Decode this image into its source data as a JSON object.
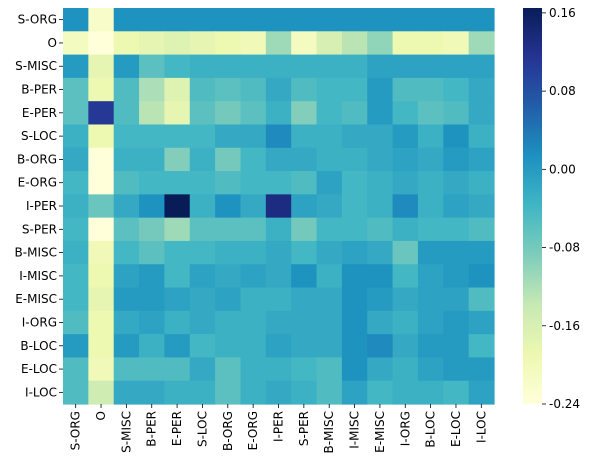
{
  "chart_data": {
    "type": "heatmap",
    "title": "",
    "xlabel": "",
    "ylabel": "",
    "row_labels": [
      "S-ORG",
      "O",
      "S-MISC",
      "B-PER",
      "E-PER",
      "S-LOC",
      "B-ORG",
      "E-ORG",
      "I-PER",
      "S-PER",
      "B-MISC",
      "I-MISC",
      "E-MISC",
      "I-ORG",
      "B-LOC",
      "E-LOC",
      "I-LOC"
    ],
    "col_labels": [
      "S-ORG",
      "O",
      "S-MISC",
      "B-PER",
      "E-PER",
      "S-LOC",
      "B-ORG",
      "E-ORG",
      "I-PER",
      "S-PER",
      "B-MISC",
      "I-MISC",
      "E-MISC",
      "I-ORG",
      "B-LOC",
      "E-LOC",
      "I-LOC"
    ],
    "values": [
      [
        0.01,
        -0.22,
        0.01,
        0.01,
        0.01,
        0.01,
        0.01,
        0.01,
        0.01,
        0.01,
        0.01,
        0.01,
        0.01,
        0.01,
        0.01,
        0.01,
        0.01
      ],
      [
        -0.21,
        -0.24,
        -0.19,
        -0.18,
        -0.17,
        -0.18,
        -0.19,
        -0.2,
        -0.11,
        -0.21,
        -0.16,
        -0.13,
        -0.1,
        -0.19,
        -0.19,
        -0.2,
        -0.11
      ],
      [
        0.0,
        -0.18,
        0.0,
        -0.06,
        -0.04,
        -0.03,
        -0.03,
        -0.03,
        -0.03,
        -0.03,
        -0.03,
        -0.03,
        -0.01,
        -0.01,
        -0.01,
        -0.01,
        -0.01
      ],
      [
        -0.06,
        -0.19,
        -0.05,
        -0.12,
        -0.17,
        -0.05,
        -0.06,
        -0.05,
        -0.02,
        -0.05,
        -0.04,
        -0.04,
        0.0,
        -0.05,
        -0.05,
        -0.04,
        -0.02
      ],
      [
        -0.06,
        0.11,
        -0.05,
        -0.13,
        -0.18,
        -0.06,
        -0.08,
        -0.06,
        -0.03,
        -0.09,
        -0.04,
        -0.05,
        0.0,
        -0.04,
        -0.06,
        -0.05,
        -0.02
      ],
      [
        -0.03,
        -0.19,
        -0.04,
        -0.04,
        -0.04,
        -0.04,
        -0.02,
        -0.02,
        0.02,
        -0.03,
        -0.03,
        -0.02,
        -0.02,
        0.0,
        -0.03,
        0.01,
        -0.03
      ],
      [
        -0.02,
        -0.24,
        -0.03,
        -0.03,
        -0.09,
        -0.03,
        -0.08,
        -0.04,
        -0.02,
        -0.02,
        -0.03,
        -0.03,
        -0.02,
        -0.01,
        -0.02,
        0.0,
        -0.01
      ],
      [
        -0.04,
        -0.24,
        -0.05,
        -0.04,
        -0.04,
        -0.04,
        -0.05,
        -0.04,
        -0.04,
        -0.05,
        -0.01,
        -0.04,
        -0.03,
        -0.02,
        -0.03,
        -0.02,
        -0.03
      ],
      [
        -0.03,
        -0.07,
        -0.02,
        0.01,
        0.17,
        -0.03,
        0.01,
        -0.02,
        0.13,
        -0.01,
        -0.02,
        -0.04,
        -0.03,
        0.02,
        -0.03,
        -0.01,
        -0.02
      ],
      [
        -0.04,
        -0.24,
        -0.06,
        -0.08,
        -0.11,
        -0.06,
        -0.06,
        -0.06,
        -0.03,
        -0.08,
        -0.04,
        -0.04,
        -0.05,
        -0.03,
        -0.04,
        -0.04,
        -0.05
      ],
      [
        -0.03,
        -0.2,
        -0.04,
        -0.06,
        -0.04,
        -0.04,
        -0.03,
        -0.03,
        -0.02,
        -0.04,
        -0.02,
        -0.01,
        -0.02,
        -0.07,
        0.0,
        0.0,
        0.0
      ],
      [
        -0.04,
        -0.19,
        -0.01,
        0.0,
        -0.04,
        -0.01,
        -0.02,
        -0.01,
        -0.02,
        0.01,
        -0.03,
        0.01,
        0.01,
        -0.04,
        -0.01,
        0.0,
        0.01
      ],
      [
        -0.04,
        -0.18,
        0.0,
        0.0,
        -0.01,
        -0.02,
        -0.01,
        -0.03,
        -0.03,
        -0.02,
        -0.02,
        0.01,
        0.0,
        -0.02,
        -0.01,
        -0.01,
        -0.05
      ],
      [
        -0.05,
        -0.19,
        -0.02,
        -0.01,
        -0.03,
        -0.02,
        -0.03,
        -0.03,
        -0.02,
        -0.02,
        -0.02,
        0.01,
        -0.02,
        -0.03,
        -0.01,
        0.0,
        -0.01
      ],
      [
        0.0,
        -0.19,
        0.0,
        -0.03,
        0.0,
        -0.04,
        -0.03,
        -0.03,
        -0.01,
        -0.02,
        -0.02,
        0.01,
        0.02,
        -0.02,
        0.0,
        0.0,
        -0.04
      ],
      [
        -0.05,
        -0.2,
        -0.05,
        -0.05,
        -0.05,
        -0.02,
        -0.06,
        -0.03,
        -0.03,
        -0.04,
        -0.05,
        0.01,
        -0.02,
        -0.03,
        -0.01,
        0.0,
        0.0
      ],
      [
        -0.05,
        -0.15,
        -0.02,
        -0.02,
        -0.03,
        -0.03,
        -0.06,
        -0.03,
        -0.02,
        -0.03,
        -0.05,
        -0.01,
        -0.04,
        -0.03,
        -0.03,
        -0.04,
        -0.01
      ]
    ],
    "vmin": -0.24,
    "vmax": 0.165,
    "colormap": "YlGnBu",
    "colorbar_ticks": [
      "0.16",
      "0.08",
      "0.00",
      "-0.08",
      "-0.16",
      "-0.24"
    ],
    "colorbar_tick_values": [
      0.16,
      0.08,
      0.0,
      -0.08,
      -0.16,
      -0.24
    ],
    "grid": false
  }
}
